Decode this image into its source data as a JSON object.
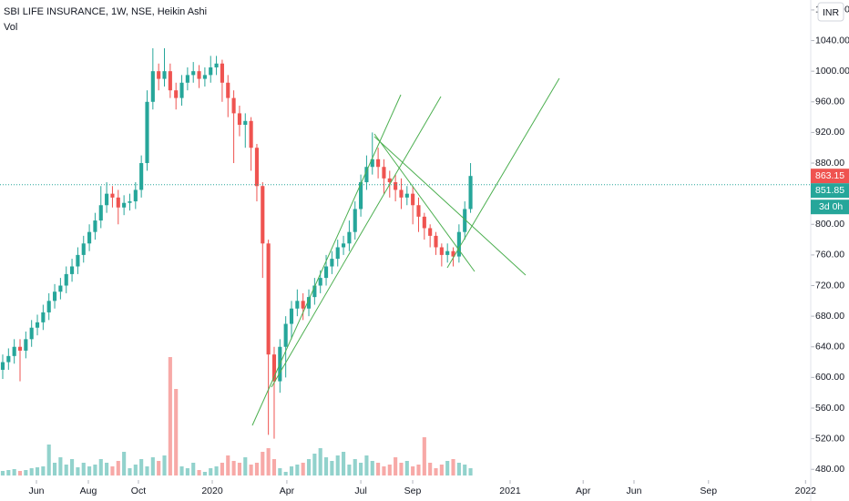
{
  "chart_data": {
    "type": "candlestick",
    "title": "SBI LIFE INSURANCE, 1W, NSE, Heikin Ashi",
    "subtitle": "Vol",
    "currency": "INR",
    "up_color": "#26a69a",
    "down_color": "#ef5350",
    "x": [
      0,
      1,
      2,
      3,
      4,
      5,
      6,
      7,
      8,
      9,
      10,
      11,
      12,
      13,
      14,
      15,
      16,
      17,
      18,
      19,
      20,
      21,
      22,
      23,
      24,
      25,
      26,
      27,
      28,
      29,
      30,
      31,
      32,
      33,
      34,
      35,
      36,
      37,
      38,
      39,
      40,
      41,
      42,
      43,
      44,
      45,
      46,
      47,
      48,
      49,
      50,
      51,
      52,
      53,
      54,
      55,
      56,
      57,
      58,
      59,
      60,
      61,
      62,
      63,
      64,
      65,
      66,
      67,
      68,
      69,
      70,
      71,
      72,
      73,
      74,
      75,
      76,
      77,
      78,
      79,
      80,
      81
    ],
    "open": [
      610,
      620,
      628,
      640,
      635,
      650,
      665,
      672,
      685,
      700,
      712,
      720,
      735,
      745,
      760,
      775,
      790,
      805,
      825,
      840,
      835,
      822,
      828,
      830,
      845,
      880,
      960,
      1000,
      990,
      1000,
      975,
      965,
      985,
      995,
      1000,
      990,
      995,
      1005,
      1010,
      985,
      965,
      945,
      930,
      935,
      900,
      850,
      775,
      630,
      595,
      640,
      670,
      690,
      700,
      690,
      705,
      720,
      730,
      745,
      755,
      770,
      775,
      790,
      820,
      855,
      875,
      885,
      875,
      860,
      855,
      845,
      835,
      840,
      825,
      810,
      795,
      785,
      770,
      760,
      765,
      758,
      790,
      820
    ],
    "high": [
      630,
      638,
      650,
      650,
      660,
      675,
      682,
      695,
      710,
      722,
      730,
      745,
      755,
      770,
      785,
      800,
      815,
      850,
      855,
      850,
      845,
      838,
      840,
      855,
      890,
      975,
      1030,
      1010,
      1030,
      1010,
      985,
      995,
      1005,
      1012,
      1008,
      1005,
      1020,
      1020,
      1015,
      995,
      975,
      955,
      945,
      940,
      905,
      855,
      780,
      640,
      650,
      680,
      700,
      715,
      710,
      715,
      730,
      740,
      760,
      765,
      780,
      785,
      805,
      830,
      865,
      890,
      920,
      900,
      885,
      870,
      865,
      860,
      850,
      850,
      835,
      815,
      800,
      790,
      775,
      775,
      770,
      800,
      830,
      880
    ],
    "low": [
      598,
      610,
      618,
      595,
      625,
      640,
      655,
      662,
      675,
      690,
      702,
      710,
      725,
      735,
      750,
      765,
      780,
      795,
      815,
      822,
      800,
      812,
      818,
      820,
      835,
      870,
      950,
      975,
      980,
      965,
      950,
      955,
      975,
      985,
      978,
      980,
      985,
      995,
      960,
      940,
      880,
      915,
      900,
      870,
      830,
      730,
      525,
      520,
      580,
      600,
      650,
      680,
      675,
      680,
      695,
      710,
      720,
      735,
      745,
      760,
      765,
      780,
      810,
      845,
      865,
      860,
      840,
      835,
      830,
      820,
      825,
      800,
      790,
      780,
      770,
      760,
      745,
      750,
      745,
      750,
      780,
      815
    ],
    "close": [
      620,
      628,
      640,
      635,
      650,
      665,
      672,
      685,
      700,
      712,
      720,
      735,
      745,
      760,
      775,
      790,
      805,
      825,
      840,
      835,
      822,
      828,
      830,
      845,
      880,
      960,
      1000,
      990,
      1000,
      975,
      965,
      985,
      995,
      1000,
      990,
      995,
      1005,
      1010,
      985,
      965,
      945,
      930,
      935,
      900,
      850,
      775,
      630,
      595,
      640,
      670,
      690,
      700,
      690,
      705,
      720,
      730,
      745,
      755,
      770,
      775,
      790,
      820,
      855,
      875,
      885,
      875,
      860,
      855,
      845,
      835,
      840,
      825,
      810,
      795,
      785,
      770,
      760,
      765,
      758,
      790,
      820,
      863.15
    ],
    "volume": [
      5,
      6,
      7,
      5,
      6,
      8,
      9,
      10,
      34,
      14,
      20,
      12,
      18,
      9,
      14,
      10,
      12,
      18,
      14,
      10,
      16,
      26,
      8,
      12,
      18,
      10,
      20,
      16,
      22,
      130,
      95,
      10,
      8,
      14,
      6,
      4,
      8,
      10,
      14,
      22,
      16,
      14,
      20,
      12,
      14,
      26,
      30,
      18,
      8,
      4,
      10,
      12,
      14,
      18,
      24,
      30,
      20,
      16,
      22,
      26,
      12,
      18,
      14,
      22,
      16,
      14,
      10,
      12,
      20,
      14,
      16,
      10,
      12,
      42,
      14,
      8,
      12,
      16,
      18,
      14,
      12,
      8
    ],
    "ylim": [
      466,
      1093
    ],
    "yticks": [
      {
        "value": 480,
        "label": "480.00"
      },
      {
        "value": 520,
        "label": "520.00"
      },
      {
        "value": 560,
        "label": "560.00"
      },
      {
        "value": 600,
        "label": "600.00"
      },
      {
        "value": 640,
        "label": "640.00"
      },
      {
        "value": 680,
        "label": "680.00"
      },
      {
        "value": 720,
        "label": "720.00"
      },
      {
        "value": 760,
        "label": "760.00"
      },
      {
        "value": 800,
        "label": "800.00"
      },
      {
        "value": 840,
        "label": "840.00"
      },
      {
        "value": 880,
        "label": "880.00"
      },
      {
        "value": 920,
        "label": "920.00"
      },
      {
        "value": 960,
        "label": "960.00"
      },
      {
        "value": 1000,
        "label": "1000.00"
      },
      {
        "value": 1040,
        "label": "1040.00"
      },
      {
        "value": 1080,
        "label": "1080.00"
      }
    ],
    "xlim": [
      -0.47,
      139.9
    ],
    "xticks": [
      {
        "value": 5.84,
        "label": "Jun"
      },
      {
        "value": 14.83,
        "label": "Aug"
      },
      {
        "value": 23.5,
        "label": "Oct"
      },
      {
        "value": 36.28,
        "label": "2020"
      },
      {
        "value": 49.2,
        "label": "Apr"
      },
      {
        "value": 62.0,
        "label": "Jul"
      },
      {
        "value": 70.98,
        "label": "Sep"
      },
      {
        "value": 87.85,
        "label": "2021"
      },
      {
        "value": 100.5,
        "label": "Apr"
      },
      {
        "value": 109.3,
        "label": "Jun"
      },
      {
        "value": 122.2,
        "label": "Sep"
      },
      {
        "value": 139.0,
        "label": "2022"
      }
    ],
    "last_price": {
      "value": 863.15,
      "label": "863.15"
    },
    "ref_price": {
      "value": 851.85,
      "label": "851.85"
    },
    "countdown": "3d 0h"
  }
}
